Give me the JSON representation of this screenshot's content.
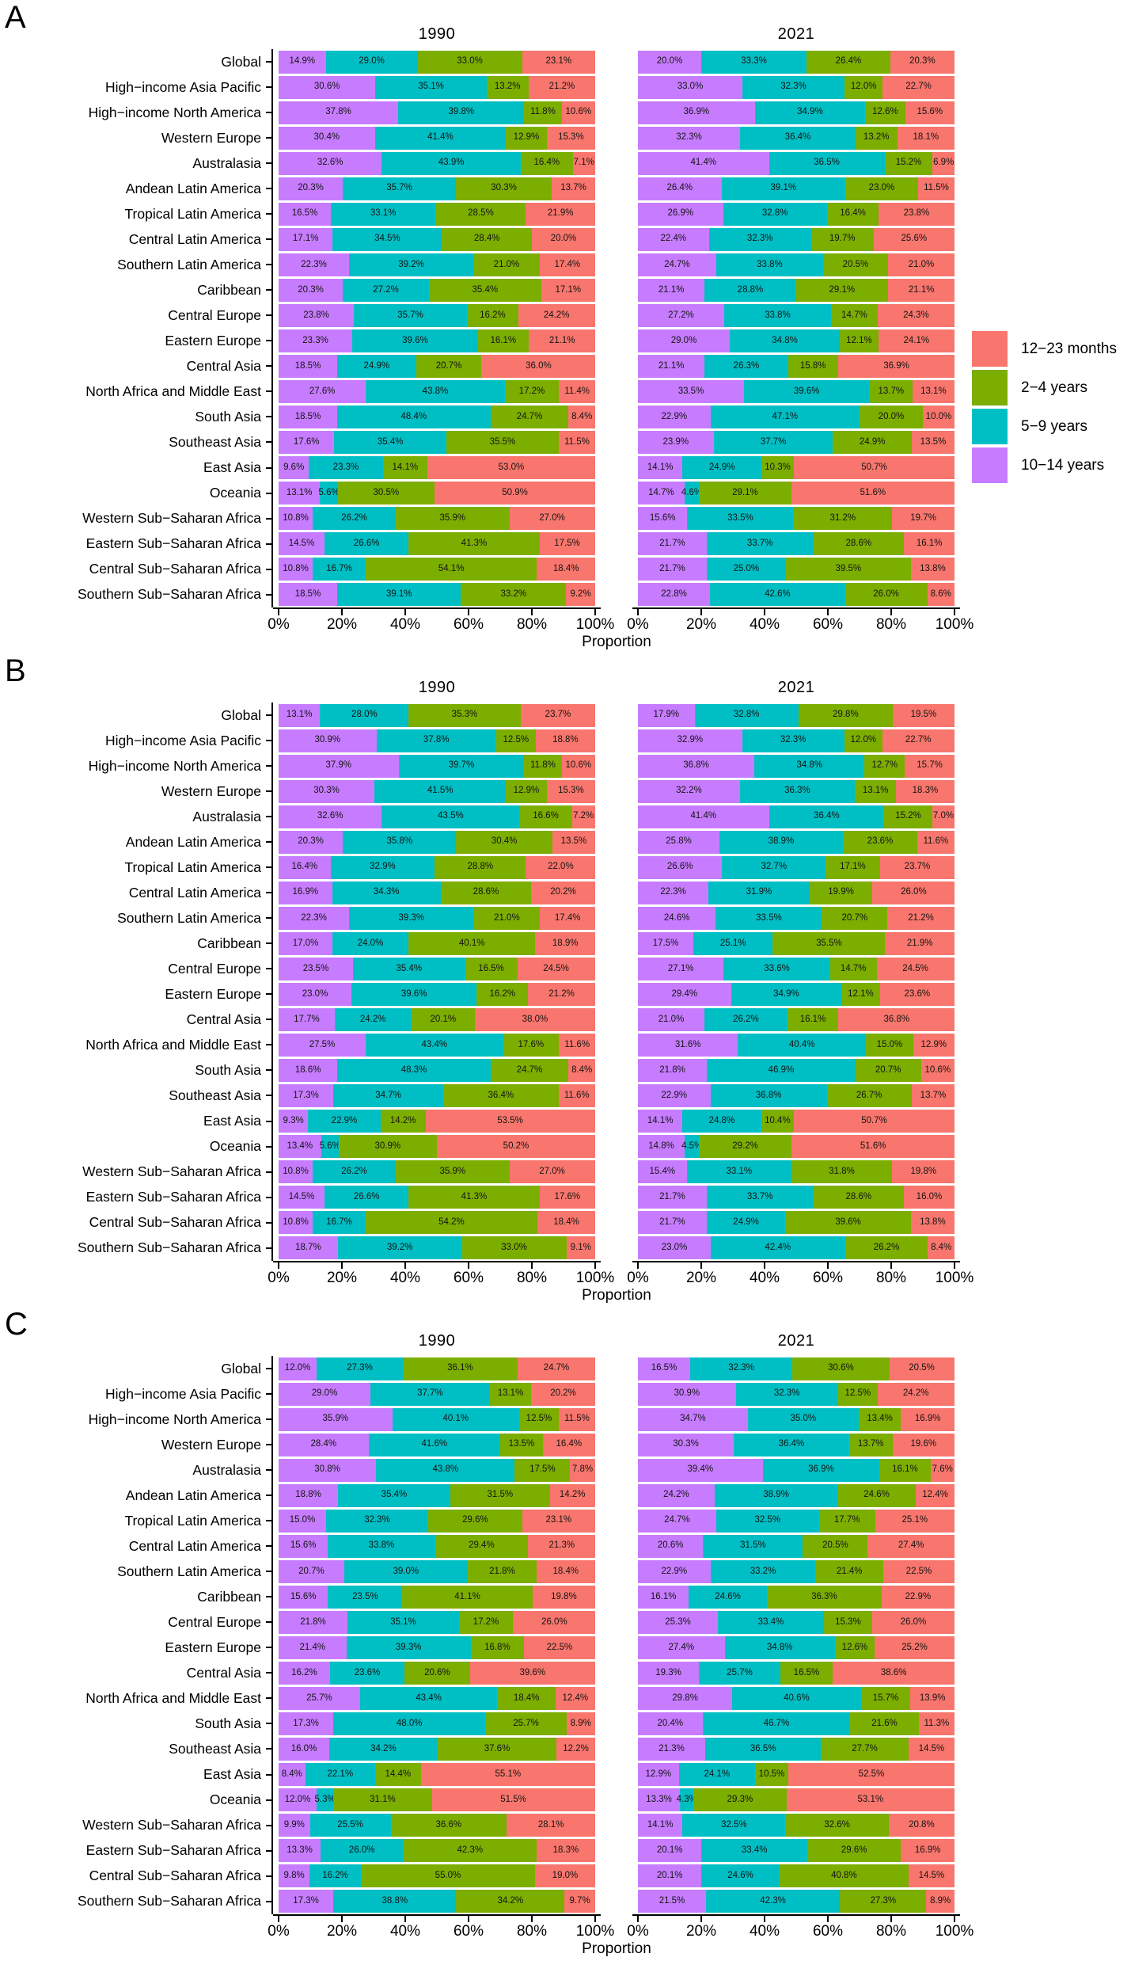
{
  "chart_data": {
    "type": "bar",
    "stacked": true,
    "orientation": "horizontal",
    "unit": "percent",
    "xlabel": "Proportion",
    "x_ticks": [
      "0%",
      "20%",
      "40%",
      "60%",
      "80%",
      "100%"
    ],
    "x_tick_values": [
      0,
      20,
      40,
      60,
      80,
      100
    ],
    "xlim": [
      0,
      100
    ],
    "grid": false,
    "legend_position": "right",
    "legend": [
      {
        "label": "12−23 months",
        "color": "#F8766D"
      },
      {
        "label": "2−4 years",
        "color": "#7CAE00"
      },
      {
        "label": "5−9 years",
        "color": "#00BFC4"
      },
      {
        "label": "10−14 years",
        "color": "#C77CFF"
      }
    ],
    "segment_order_left_to_right": [
      "10−14 years",
      "5−9 years",
      "2−4 years",
      "12−23 months"
    ],
    "segment_colors_left_to_right": [
      "#C77CFF",
      "#00BFC4",
      "#7CAE00",
      "#F8766D"
    ],
    "value_label_format": "{value}%",
    "regions": [
      "Global",
      "High−income Asia Pacific",
      "High−income North America",
      "Western Europe",
      "Australasia",
      "Andean Latin America",
      "Tropical Latin America",
      "Central Latin America",
      "Southern Latin America",
      "Caribbean",
      "Central Europe",
      "Eastern Europe",
      "Central Asia",
      "North Africa and Middle East",
      "South Asia",
      "Southeast Asia",
      "East Asia",
      "Oceania",
      "Western Sub−Saharan Africa",
      "Eastern Sub−Saharan Africa",
      "Central Sub−Saharan Africa",
      "Southern Sub−Saharan Africa"
    ],
    "panels": [
      {
        "label": "A",
        "columns": [
          {
            "title": "1990",
            "rows": [
              [
                14.9,
                29.0,
                33.0,
                23.1
              ],
              [
                30.6,
                35.1,
                13.2,
                21.2
              ],
              [
                37.8,
                39.8,
                11.8,
                10.6
              ],
              [
                30.4,
                41.4,
                12.9,
                15.3
              ],
              [
                32.6,
                43.9,
                16.4,
                7.1
              ],
              [
                20.3,
                35.7,
                30.3,
                13.7
              ],
              [
                16.5,
                33.1,
                28.5,
                21.9
              ],
              [
                17.1,
                34.5,
                28.4,
                20.0
              ],
              [
                22.3,
                39.2,
                21.0,
                17.4
              ],
              [
                20.3,
                27.2,
                35.4,
                17.1
              ],
              [
                23.8,
                35.7,
                16.2,
                24.2
              ],
              [
                23.3,
                39.6,
                16.1,
                21.1
              ],
              [
                18.5,
                24.9,
                20.7,
                36.0
              ],
              [
                27.6,
                43.8,
                17.2,
                11.4
              ],
              [
                18.5,
                48.4,
                24.7,
                8.4
              ],
              [
                17.6,
                35.4,
                35.5,
                11.5
              ],
              [
                9.6,
                23.3,
                14.1,
                53.0
              ],
              [
                13.1,
                5.6,
                30.5,
                50.9
              ],
              [
                10.8,
                26.2,
                35.9,
                27.0
              ],
              [
                14.5,
                26.6,
                41.3,
                17.5
              ],
              [
                10.8,
                16.7,
                54.1,
                18.4
              ],
              [
                18.5,
                39.1,
                33.2,
                9.2
              ]
            ]
          },
          {
            "title": "2021",
            "rows": [
              [
                20.0,
                33.3,
                26.4,
                20.3
              ],
              [
                33.0,
                32.3,
                12.0,
                22.7
              ],
              [
                36.9,
                34.9,
                12.6,
                15.6
              ],
              [
                32.3,
                36.4,
                13.2,
                18.1
              ],
              [
                41.4,
                36.5,
                15.2,
                6.9
              ],
              [
                26.4,
                39.1,
                23.0,
                11.5
              ],
              [
                26.9,
                32.8,
                16.4,
                23.8
              ],
              [
                22.4,
                32.3,
                19.7,
                25.6
              ],
              [
                24.7,
                33.8,
                20.5,
                21.0
              ],
              [
                21.1,
                28.8,
                29.1,
                21.1
              ],
              [
                27.2,
                33.8,
                14.7,
                24.3
              ],
              [
                29.0,
                34.8,
                12.1,
                24.1
              ],
              [
                21.1,
                26.3,
                15.8,
                36.9
              ],
              [
                33.5,
                39.6,
                13.7,
                13.1
              ],
              [
                22.9,
                47.1,
                20.0,
                10.0
              ],
              [
                23.9,
                37.7,
                24.9,
                13.5
              ],
              [
                14.1,
                24.9,
                10.3,
                50.7
              ],
              [
                14.7,
                4.6,
                29.1,
                51.6
              ],
              [
                15.6,
                33.5,
                31.2,
                19.7
              ],
              [
                21.7,
                33.7,
                28.6,
                16.1
              ],
              [
                21.7,
                25.0,
                39.5,
                13.8
              ],
              [
                22.8,
                42.6,
                26.0,
                8.6
              ]
            ]
          }
        ]
      },
      {
        "label": "B",
        "columns": [
          {
            "title": "1990",
            "rows": [
              [
                13.1,
                28.0,
                35.3,
                23.7
              ],
              [
                30.9,
                37.8,
                12.5,
                18.8
              ],
              [
                37.9,
                39.7,
                11.8,
                10.6
              ],
              [
                30.3,
                41.5,
                12.9,
                15.3
              ],
              [
                32.6,
                43.5,
                16.6,
                7.2
              ],
              [
                20.3,
                35.8,
                30.4,
                13.5
              ],
              [
                16.4,
                32.9,
                28.8,
                22.0
              ],
              [
                16.9,
                34.3,
                28.6,
                20.2
              ],
              [
                22.3,
                39.3,
                21.0,
                17.4
              ],
              [
                17.0,
                24.0,
                40.1,
                18.9
              ],
              [
                23.5,
                35.4,
                16.5,
                24.5
              ],
              [
                23.0,
                39.6,
                16.2,
                21.2
              ],
              [
                17.7,
                24.2,
                20.1,
                38.0
              ],
              [
                27.5,
                43.4,
                17.6,
                11.6
              ],
              [
                18.6,
                48.3,
                24.7,
                8.4
              ],
              [
                17.3,
                34.7,
                36.4,
                11.6
              ],
              [
                9.3,
                22.9,
                14.2,
                53.5
              ],
              [
                13.4,
                5.6,
                30.9,
                50.2
              ],
              [
                10.8,
                26.2,
                35.9,
                27.0
              ],
              [
                14.5,
                26.6,
                41.3,
                17.6
              ],
              [
                10.8,
                16.7,
                54.2,
                18.4
              ],
              [
                18.7,
                39.2,
                33.0,
                9.1
              ]
            ]
          },
          {
            "title": "2021",
            "rows": [
              [
                17.9,
                32.8,
                29.8,
                19.5
              ],
              [
                32.9,
                32.3,
                12.0,
                22.7
              ],
              [
                36.8,
                34.8,
                12.7,
                15.7
              ],
              [
                32.2,
                36.3,
                13.1,
                18.3
              ],
              [
                41.4,
                36.4,
                15.2,
                7.0
              ],
              [
                25.8,
                38.9,
                23.6,
                11.6
              ],
              [
                26.6,
                32.7,
                17.1,
                23.7
              ],
              [
                22.3,
                31.9,
                19.9,
                26.0
              ],
              [
                24.6,
                33.5,
                20.7,
                21.2
              ],
              [
                17.5,
                25.1,
                35.5,
                21.9
              ],
              [
                27.1,
                33.6,
                14.7,
                24.5
              ],
              [
                29.4,
                34.9,
                12.1,
                23.6
              ],
              [
                21.0,
                26.2,
                16.1,
                36.8
              ],
              [
                31.6,
                40.4,
                15.0,
                12.9
              ],
              [
                21.8,
                46.9,
                20.7,
                10.6
              ],
              [
                22.9,
                36.8,
                26.7,
                13.7
              ],
              [
                14.1,
                24.8,
                10.4,
                50.7
              ],
              [
                14.8,
                4.5,
                29.2,
                51.6
              ],
              [
                15.4,
                33.1,
                31.8,
                19.8
              ],
              [
                21.7,
                33.7,
                28.6,
                16.0
              ],
              [
                21.7,
                24.9,
                39.6,
                13.8
              ],
              [
                23.0,
                42.4,
                26.2,
                8.4
              ]
            ]
          }
        ]
      },
      {
        "label": "C",
        "columns": [
          {
            "title": "1990",
            "rows": [
              [
                12.0,
                27.3,
                36.1,
                24.7
              ],
              [
                29.0,
                37.7,
                13.1,
                20.2
              ],
              [
                35.9,
                40.1,
                12.5,
                11.5
              ],
              [
                28.4,
                41.6,
                13.5,
                16.4
              ],
              [
                30.8,
                43.8,
                17.5,
                7.8
              ],
              [
                18.8,
                35.4,
                31.5,
                14.2
              ],
              [
                15.0,
                32.3,
                29.6,
                23.1
              ],
              [
                15.6,
                33.8,
                29.4,
                21.3
              ],
              [
                20.7,
                39.0,
                21.8,
                18.4
              ],
              [
                15.6,
                23.5,
                41.1,
                19.8
              ],
              [
                21.8,
                35.1,
                17.2,
                26.0
              ],
              [
                21.4,
                39.3,
                16.8,
                22.5
              ],
              [
                16.2,
                23.6,
                20.6,
                39.6
              ],
              [
                25.7,
                43.4,
                18.4,
                12.4
              ],
              [
                17.3,
                48.0,
                25.7,
                8.9
              ],
              [
                16.0,
                34.2,
                37.6,
                12.2
              ],
              [
                8.4,
                22.1,
                14.4,
                55.1
              ],
              [
                12.0,
                5.3,
                31.1,
                51.5
              ],
              [
                9.9,
                25.5,
                36.6,
                28.1
              ],
              [
                13.3,
                26.0,
                42.3,
                18.3
              ],
              [
                9.8,
                16.2,
                55.0,
                19.0
              ],
              [
                17.3,
                38.8,
                34.2,
                9.7
              ]
            ]
          },
          {
            "title": "2021",
            "rows": [
              [
                16.5,
                32.3,
                30.6,
                20.5
              ],
              [
                30.9,
                32.3,
                12.5,
                24.2
              ],
              [
                34.7,
                35.0,
                13.4,
                16.9
              ],
              [
                30.3,
                36.4,
                13.7,
                19.6
              ],
              [
                39.4,
                36.9,
                16.1,
                7.6
              ],
              [
                24.2,
                38.9,
                24.6,
                12.4
              ],
              [
                24.7,
                32.5,
                17.7,
                25.1
              ],
              [
                20.6,
                31.5,
                20.5,
                27.4
              ],
              [
                22.9,
                33.2,
                21.4,
                22.5
              ],
              [
                16.1,
                24.6,
                36.3,
                22.9
              ],
              [
                25.3,
                33.4,
                15.3,
                26.0
              ],
              [
                27.4,
                34.8,
                12.6,
                25.2
              ],
              [
                19.3,
                25.7,
                16.5,
                38.6
              ],
              [
                29.8,
                40.6,
                15.7,
                13.9
              ],
              [
                20.4,
                46.7,
                21.6,
                11.3
              ],
              [
                21.3,
                36.5,
                27.7,
                14.5
              ],
              [
                12.9,
                24.1,
                10.5,
                52.5
              ],
              [
                13.3,
                4.3,
                29.3,
                53.1
              ],
              [
                14.1,
                32.5,
                32.6,
                20.8
              ],
              [
                20.1,
                33.4,
                29.6,
                16.9
              ],
              [
                20.1,
                24.6,
                40.8,
                14.5
              ],
              [
                21.5,
                42.3,
                27.3,
                8.9
              ]
            ]
          }
        ]
      }
    ]
  }
}
